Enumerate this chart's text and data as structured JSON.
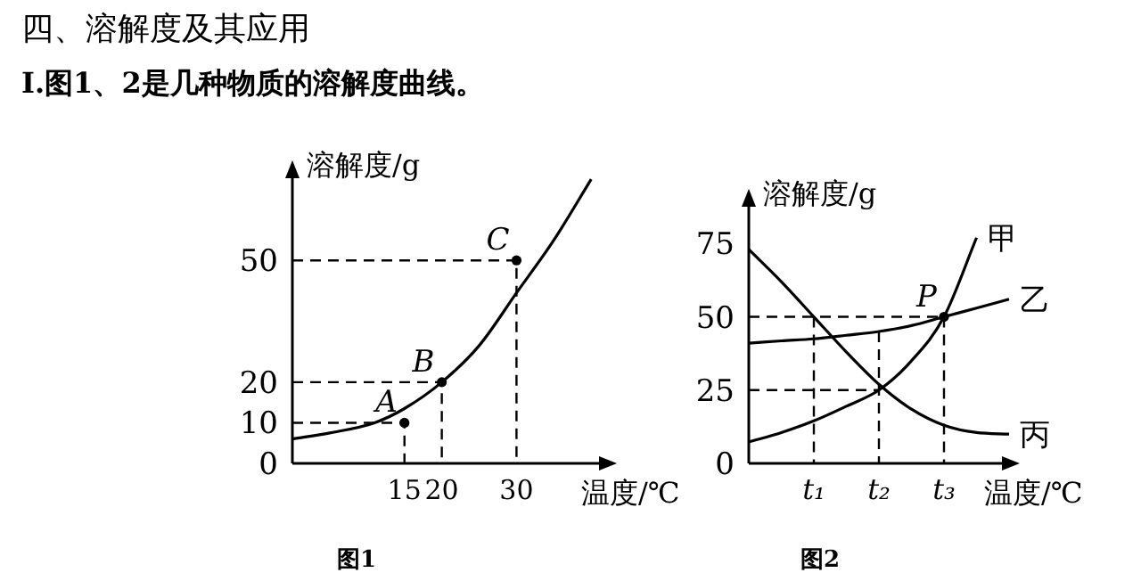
{
  "chart_data": [
    {
      "type": "line",
      "title": "图1",
      "xlabel": "温度/℃",
      "ylabel": "溶解度/g",
      "xlim": [
        0,
        42
      ],
      "ylim": [
        0,
        72
      ],
      "xticks": [
        15,
        20,
        30
      ],
      "yticks": [
        0,
        10,
        20,
        50
      ],
      "annotations": [
        "四、溶解度及其应用",
        "I.图1、2是几种物质的溶解度曲线。",
        {
          "text": "A",
          "x": 15,
          "y": 10
        },
        {
          "text": "B",
          "x": 20,
          "y": 20
        },
        {
          "text": "C",
          "x": 30,
          "y": 50
        }
      ],
      "series": [
        {
          "color": "#000000",
          "line_style": "solid",
          "x": [
            0,
            5,
            11,
            15,
            20,
            25,
            30,
            35,
            40
          ],
          "values": [
            6,
            7.5,
            10,
            13.5,
            20,
            29,
            42,
            55,
            70
          ]
        },
        {
          "color": "#000000",
          "line_style": "dashed",
          "x": [
            0,
            15,
            15
          ],
          "values": [
            10,
            10,
            0
          ]
        },
        {
          "color": "#000000",
          "line_style": "dashed",
          "x": [
            0,
            20,
            20
          ],
          "values": [
            20,
            20,
            0
          ]
        },
        {
          "color": "#000000",
          "line_style": "dashed",
          "x": [
            0,
            30,
            30
          ],
          "values": [
            50,
            50,
            0
          ]
        },
        {
          "type": "scatter",
          "marker": "circle",
          "color": "#000000",
          "x": [
            15,
            20,
            30
          ],
          "values": [
            10,
            20,
            50
          ]
        }
      ]
    },
    {
      "type": "line",
      "title": "图2",
      "xlabel": "温度/℃",
      "ylabel": "溶解度/g",
      "ylim": [
        0,
        90
      ],
      "yticks": [
        0,
        25,
        50,
        75
      ],
      "categories": [
        null,
        null,
        "t₁",
        null,
        "t₂",
        null,
        "t₃",
        null,
        null
      ],
      "annotations": [
        {
          "text": "P",
          "x": "t₃",
          "y": 50
        }
      ],
      "series": [
        {
          "name": "甲",
          "color": "#000000",
          "line_style": "solid",
          "values": [
            7.3,
            10.5,
            14.5,
            19.5,
            25,
            35,
            50,
            77,
            null
          ]
        },
        {
          "name": "乙",
          "color": "#000000",
          "line_style": "solid",
          "values": [
            41,
            41.8,
            42.5,
            43.7,
            45,
            47,
            50,
            53,
            56
          ]
        },
        {
          "name": "丙",
          "color": "#000000",
          "line_style": "solid",
          "values": [
            73,
            62,
            50,
            38,
            27,
            18.5,
            13,
            10.5,
            10
          ]
        },
        {
          "color": "#000000",
          "line_style": "dashed",
          "values": [
            50,
            50,
            50,
            50,
            50,
            50,
            50,
            null,
            null
          ]
        },
        {
          "color": "#000000",
          "line_style": "dashed",
          "values": [
            25,
            25,
            25,
            25,
            25,
            null,
            null,
            null,
            null
          ]
        },
        {
          "color": "#000000",
          "line_style": "dashed",
          "x": [
            "t₁",
            "t₁"
          ],
          "values": [
            50,
            0
          ]
        },
        {
          "color": "#000000",
          "line_style": "dashed",
          "x": [
            "t₂",
            "t₂"
          ],
          "values": [
            45,
            0
          ]
        },
        {
          "color": "#000000",
          "line_style": "dashed",
          "x": [
            "t₃",
            "t₃"
          ],
          "values": [
            50,
            0
          ]
        },
        {
          "type": "scatter",
          "marker": "circle",
          "color": "#000000",
          "x": [
            "t₃"
          ],
          "values": [
            50
          ]
        }
      ]
    }
  ]
}
